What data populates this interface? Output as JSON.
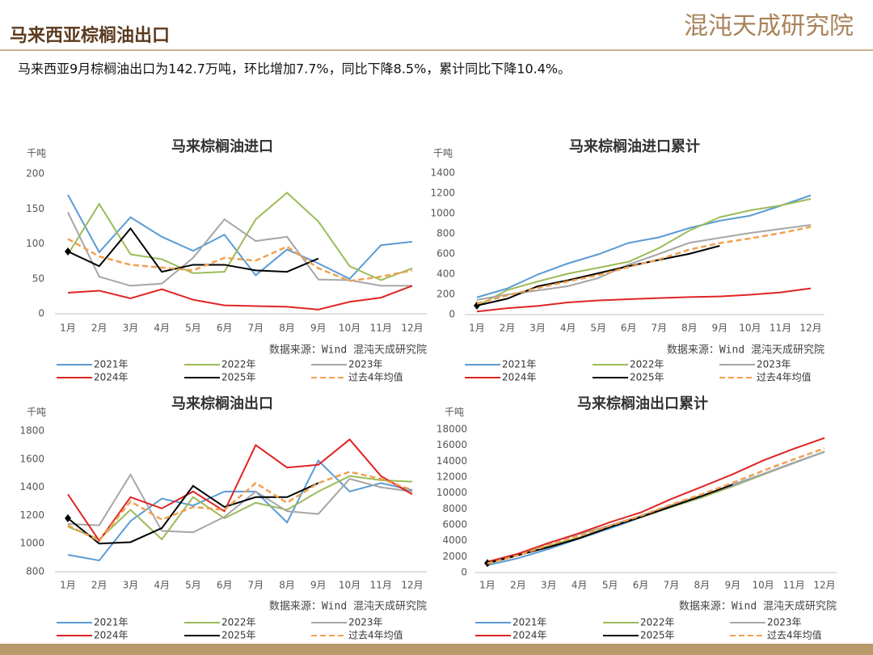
{
  "header": {
    "title": "马来西亚棕榈油出口",
    "logo": "混沌天成研究院"
  },
  "summary": "马来西亚9月棕榈油出口为142.7万吨，环比增加7.7%，同比下降8.5%，累计同比下降10.4%。",
  "chart_data": [
    {
      "type": "line",
      "title": "马来棕榈油进口",
      "y_label": "千吨",
      "source": "数据来源：Wind  混沌天成研究院",
      "categories": [
        "1月",
        "2月",
        "3月",
        "4月",
        "5月",
        "6月",
        "7月",
        "8月",
        "9月",
        "10月",
        "11月",
        "12月"
      ],
      "ylim": [
        0,
        200
      ],
      "yticks": [
        0,
        50,
        100,
        150,
        200
      ],
      "series": [
        {
          "name": "2021年",
          "color": "#5b9bd5",
          "values": [
            170,
            88,
            138,
            110,
            90,
            113,
            55,
            92,
            72,
            50,
            98,
            103
          ]
        },
        {
          "name": "2022年",
          "color": "#9bbb59",
          "values": [
            85,
            157,
            85,
            78,
            58,
            60,
            135,
            173,
            132,
            68,
            48,
            65
          ]
        },
        {
          "name": "2023年",
          "color": "#a6a6a6",
          "values": [
            145,
            53,
            40,
            43,
            80,
            135,
            104,
            110,
            49,
            48,
            40,
            40
          ]
        },
        {
          "name": "2024年",
          "color": "#e02424",
          "values": [
            30,
            33,
            22,
            35,
            20,
            12,
            11,
            10,
            6,
            17,
            23,
            40
          ]
        },
        {
          "name": "2025年",
          "color": "#000000",
          "start_marker": "diamond",
          "values": [
            89,
            68,
            122,
            60,
            70,
            70,
            62,
            60,
            79,
            null,
            null,
            null
          ]
        },
        {
          "name": "过去4年均值",
          "color": "#f0a050",
          "dashed": true,
          "values": [
            107,
            82,
            70,
            66,
            62,
            80,
            76,
            96,
            65,
            47,
            53,
            62
          ]
        }
      ]
    },
    {
      "type": "line",
      "title": "马来棕榈油进口累计",
      "y_label": "千吨",
      "source": "数据来源：Wind  混沌天成研究院",
      "categories": [
        "1月",
        "2月",
        "3月",
        "4月",
        "5月",
        "6月",
        "7月",
        "8月",
        "9月",
        "10月",
        "11月",
        "12月"
      ],
      "ylim": [
        0,
        1400
      ],
      "yticks": [
        0,
        200,
        400,
        600,
        800,
        1000,
        1200,
        1400
      ],
      "series": [
        {
          "name": "2021年",
          "color": "#5b9bd5",
          "values": [
            170,
            258,
            396,
            506,
            596,
            709,
            764,
            856,
            928,
            978,
            1076,
            1179
          ]
        },
        {
          "name": "2022年",
          "color": "#9bbb59",
          "values": [
            85,
            242,
            327,
            405,
            463,
            523,
            658,
            831,
            963,
            1031,
            1079,
            1144
          ]
        },
        {
          "name": "2023年",
          "color": "#a6a6a6",
          "values": [
            145,
            198,
            238,
            281,
            361,
            496,
            600,
            710,
            759,
            807,
            847,
            887
          ]
        },
        {
          "name": "2024年",
          "color": "#e02424",
          "values": [
            30,
            63,
            85,
            120,
            140,
            152,
            163,
            173,
            179,
            196,
            219,
            259
          ]
        },
        {
          "name": "2025年",
          "color": "#000000",
          "start_marker": "diamond",
          "values": [
            89,
            157,
            279,
            339,
            409,
            479,
            541,
            601,
            680,
            null,
            null,
            null
          ]
        },
        {
          "name": "过去4年均值",
          "color": "#f0a050",
          "dashed": true,
          "values": [
            108,
            190,
            262,
            328,
            390,
            470,
            546,
            642,
            707,
            753,
            805,
            867
          ]
        }
      ]
    },
    {
      "type": "line",
      "title": "马来棕榈油出口",
      "y_label": "千吨",
      "source": "数据来源：Wind  混沌天成研究院",
      "categories": [
        "1月",
        "2月",
        "3月",
        "4月",
        "5月",
        "6月",
        "7月",
        "8月",
        "9月",
        "10月",
        "11月",
        "12月"
      ],
      "ylim": [
        800,
        1800
      ],
      "yticks": [
        800,
        1000,
        1200,
        1400,
        1600,
        1800
      ],
      "series": [
        {
          "name": "2021年",
          "color": "#5b9bd5",
          "values": [
            920,
            880,
            1160,
            1320,
            1270,
            1370,
            1370,
            1150,
            1590,
            1370,
            1430,
            1380
          ]
        },
        {
          "name": "2022年",
          "color": "#9bbb59",
          "values": [
            1120,
            1030,
            1240,
            1030,
            1330,
            1180,
            1290,
            1240,
            1370,
            1480,
            1450,
            1440
          ]
        },
        {
          "name": "2023年",
          "color": "#a6a6a6",
          "values": [
            1140,
            1130,
            1490,
            1090,
            1080,
            1190,
            1370,
            1230,
            1210,
            1460,
            1400,
            1370
          ]
        },
        {
          "name": "2024年",
          "color": "#e02424",
          "values": [
            1350,
            1020,
            1330,
            1250,
            1370,
            1230,
            1700,
            1540,
            1560,
            1740,
            1480,
            1350
          ]
        },
        {
          "name": "2025年",
          "color": "#000000",
          "start_marker": "diamond",
          "values": [
            1180,
            1000,
            1010,
            1110,
            1410,
            1260,
            1330,
            1330,
            1430,
            null,
            null,
            null
          ]
        },
        {
          "name": "过去4年均值",
          "color": "#f0a050",
          "dashed": true,
          "values": [
            1130,
            1020,
            1300,
            1170,
            1260,
            1240,
            1430,
            1290,
            1430,
            1510,
            1460,
            1380
          ]
        }
      ]
    },
    {
      "type": "line",
      "title": "马来棕榈油出口累计",
      "y_label": "千吨",
      "source": "数据来源：Wind  混沌天成研究院",
      "categories": [
        "1月",
        "2月",
        "3月",
        "4月",
        "5月",
        "6月",
        "7月",
        "8月",
        "9月",
        "10月",
        "11月",
        "12月"
      ],
      "ylim": [
        0,
        18000
      ],
      "yticks": [
        0,
        2000,
        4000,
        6000,
        8000,
        10000,
        12000,
        14000,
        16000,
        18000
      ],
      "series": [
        {
          "name": "2021年",
          "color": "#5b9bd5",
          "values": [
            920,
            1800,
            2960,
            4280,
            5550,
            6920,
            8290,
            9440,
            11030,
            12400,
            13830,
            15210
          ]
        },
        {
          "name": "2022年",
          "color": "#9bbb59",
          "values": [
            1120,
            2150,
            3390,
            4420,
            5750,
            6930,
            8220,
            9460,
            10830,
            12310,
            13760,
            15200
          ]
        },
        {
          "name": "2023年",
          "color": "#a6a6a6",
          "values": [
            1140,
            2270,
            3760,
            4850,
            5930,
            7120,
            8490,
            9720,
            10930,
            12390,
            13790,
            15160
          ]
        },
        {
          "name": "2024年",
          "color": "#e02424",
          "values": [
            1350,
            2370,
            3700,
            4950,
            6320,
            7550,
            9250,
            10790,
            12350,
            14090,
            15570,
            16920
          ]
        },
        {
          "name": "2025年",
          "color": "#000000",
          "start_marker": "diamond",
          "values": [
            1180,
            2180,
            3190,
            4300,
            5710,
            6970,
            8300,
            9630,
            11060,
            null,
            null,
            null
          ]
        },
        {
          "name": "过去4年均值",
          "color": "#f0a050",
          "dashed": true,
          "values": [
            1130,
            2150,
            3450,
            4630,
            5890,
            7130,
            8560,
            9850,
            11280,
            12800,
            14240,
            15620
          ]
        }
      ]
    }
  ]
}
